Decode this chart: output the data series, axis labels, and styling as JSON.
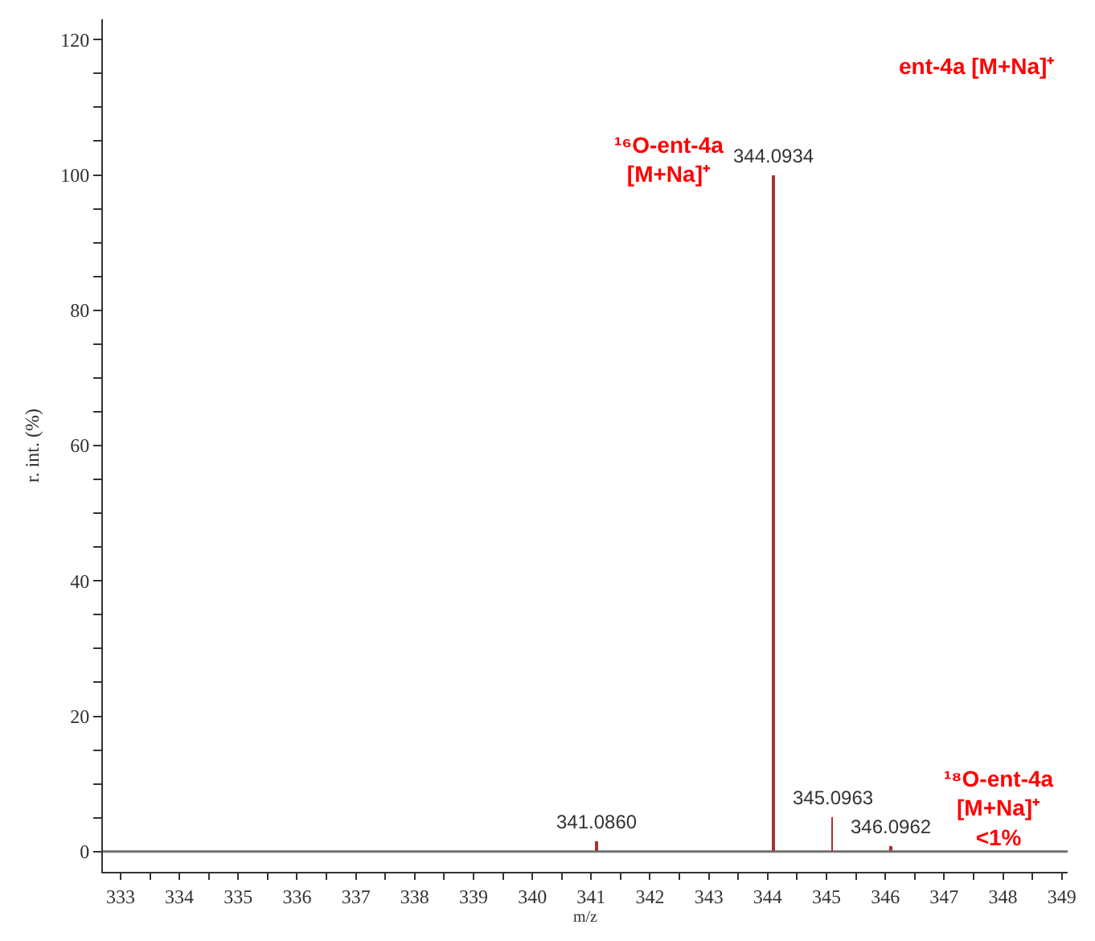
{
  "chart_data": {
    "type": "bar",
    "xlabel": "m/z",
    "ylabel": "r. int. (%)",
    "x": [
      341.086,
      344.0934,
      345.0963,
      346.0962
    ],
    "values": [
      1.4,
      100,
      5.1,
      0.9
    ],
    "color": "#a83232",
    "xlim": [
      332.7,
      349.1
    ],
    "xticks": [
      333,
      {
        "value": 333.5,
        "label": null
      },
      334,
      {
        "value": 334.5,
        "label": null
      },
      335,
      {
        "value": 335.5,
        "label": null
      },
      336,
      {
        "value": 336.5,
        "label": null
      },
      337,
      {
        "value": 337.5,
        "label": null
      },
      338,
      {
        "value": 338.5,
        "label": null
      },
      339,
      {
        "value": 339.5,
        "label": null
      },
      340,
      {
        "value": 340.5,
        "label": null
      },
      341,
      {
        "value": 341.5,
        "label": null
      },
      342,
      {
        "value": 342.5,
        "label": null
      },
      343,
      {
        "value": 343.5,
        "label": null
      },
      344,
      {
        "value": 344.5,
        "label": null
      },
      345,
      {
        "value": 345.5,
        "label": null
      },
      346,
      {
        "value": 346.5,
        "label": null
      },
      347,
      {
        "value": 347.5,
        "label": null
      },
      348,
      {
        "value": 348.5,
        "label": null
      },
      349
    ],
    "ylim": [
      -3,
      123
    ],
    "yticks": [
      0,
      {
        "value": 5,
        "label": null
      },
      {
        "value": 10,
        "label": null
      },
      {
        "value": 15,
        "label": null
      },
      20,
      {
        "value": 25,
        "label": null
      },
      {
        "value": 30,
        "label": null
      },
      {
        "value": 35,
        "label": null
      },
      40,
      {
        "value": 45,
        "label": null
      },
      {
        "value": 50,
        "label": null
      },
      {
        "value": 55,
        "label": null
      },
      60,
      {
        "value": 65,
        "label": null
      },
      {
        "value": 70,
        "label": null
      },
      {
        "value": 75,
        "label": null
      },
      80,
      {
        "value": 85,
        "label": null
      },
      {
        "value": 90,
        "label": null
      },
      {
        "value": 95,
        "label": null
      },
      100,
      {
        "value": 105,
        "label": null
      },
      {
        "value": 110,
        "label": null
      },
      {
        "value": 115,
        "label": null
      },
      120
    ],
    "ref_lines": [
      {
        "axis": "y",
        "value": 0,
        "color": "#707070"
      }
    ],
    "annotations": [
      "ent-4a [M+Na]⁺",
      "¹⁶O-ent-4a\n[M+Na]⁺",
      "¹⁸O-ent-4a\n[M+Na]⁺\n<1%",
      {
        "text": "341.0860",
        "x": 341.086,
        "y": 1.4
      },
      {
        "text": "344.0934",
        "x": 344.0934,
        "y": 100
      },
      {
        "text": "345.0963",
        "x": 345.0963,
        "y": 5.1
      },
      {
        "text": "346.0962",
        "x": 346.0962,
        "y": 0.9
      }
    ]
  }
}
